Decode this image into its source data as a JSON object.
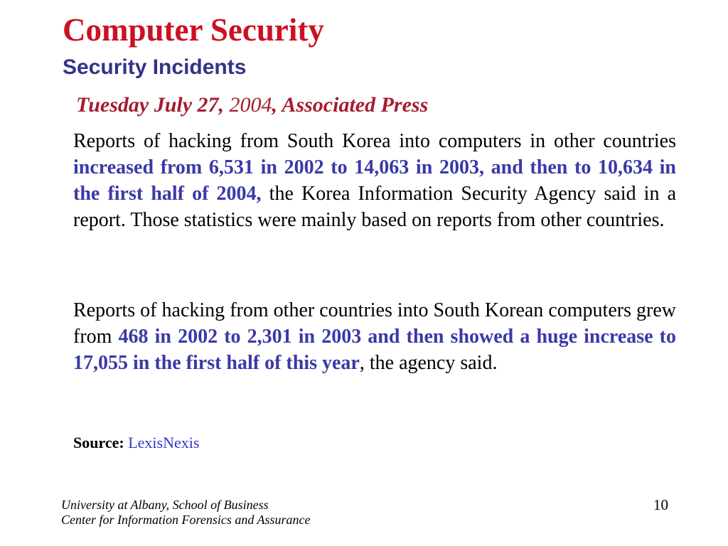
{
  "slide": {
    "title": "Computer Security",
    "subtitle": "Security Incidents",
    "dateline": {
      "part1_bold": "Tuesday July 27,",
      "part2_regular": " 2004",
      "part3_bold": ", Associated Press"
    },
    "paragraph1": {
      "black1": "Reports of hacking from South Korea into computers in other countries ",
      "blue_bold": "increased from 6,531 in 2002 to 14,063 in 2003, and then to 10,634 in the first half of 2004,",
      "black2": " the Korea Information Security Agency said in a report. Those statistics were mainly based on reports from other countries."
    },
    "paragraph2": {
      "black1": "Reports of hacking from other countries into South Korean computers grew from ",
      "blue_bold": "468 in 2002 to 2,301 in 2003 and then showed a huge increase to 17,055 in the first half of this year",
      "black2": ", the agency said."
    },
    "source": {
      "label": "Source: ",
      "link": "LexisNexis"
    },
    "footer": {
      "line1": "University at Albany, School of Business",
      "line2": "Center for Information Forensics and Assurance"
    },
    "page_number": "10",
    "colors": {
      "title_red": "#cc1122",
      "subtitle_blue": "#333388",
      "dateline_red": "#a51c30",
      "body_blue_bold": "#3939a8",
      "link_blue": "#3333cc",
      "body_black": "#000000",
      "background": "#ffffff"
    }
  }
}
